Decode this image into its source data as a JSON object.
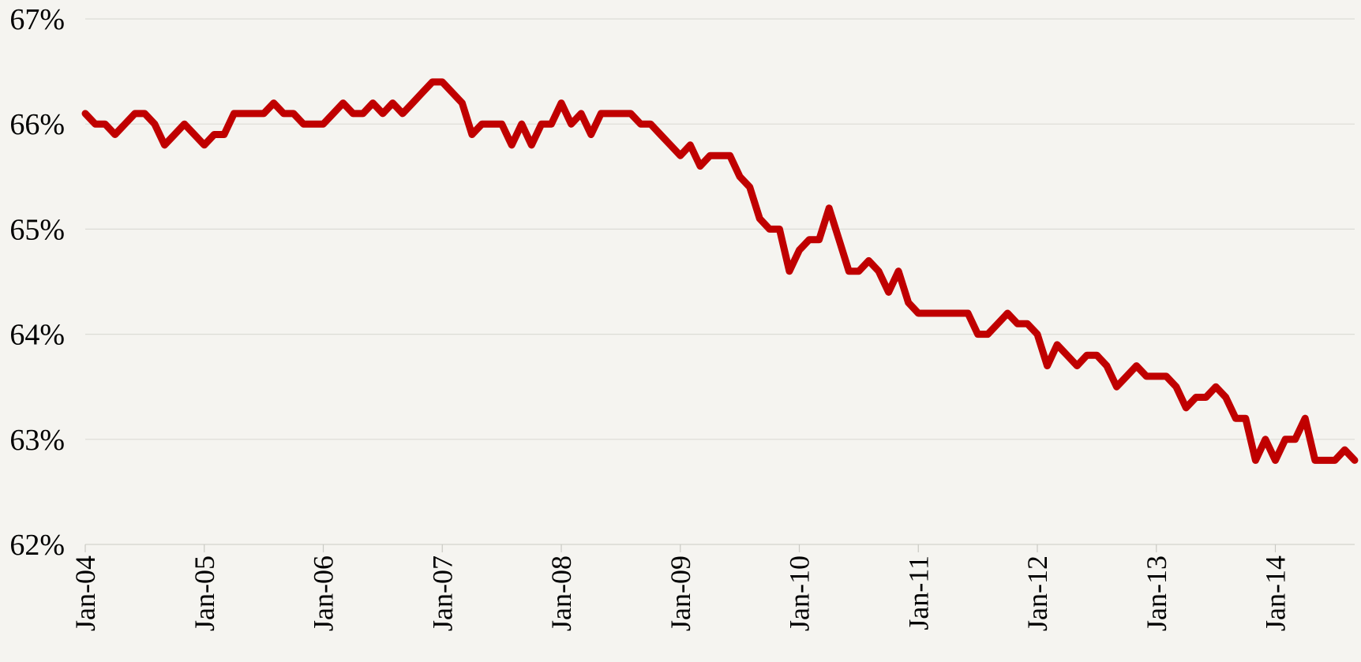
{
  "chart_data": {
    "type": "line",
    "title": "",
    "xlabel": "",
    "ylabel": "",
    "ylim": [
      62,
      67
    ],
    "y_ticks": [
      62,
      63,
      64,
      65,
      66,
      67
    ],
    "y_tick_labels": [
      "62%",
      "63%",
      "64%",
      "65%",
      "66%",
      "67%"
    ],
    "x_range": [
      "2004-01",
      "2014-09"
    ],
    "x_ticks": [
      "2004-01",
      "2005-01",
      "2006-01",
      "2007-01",
      "2008-01",
      "2009-01",
      "2010-01",
      "2011-01",
      "2012-01",
      "2013-01",
      "2014-01"
    ],
    "x_tick_labels": [
      "Jan-04",
      "Jan-05",
      "Jan-06",
      "Jan-07",
      "Jan-08",
      "Jan-09",
      "Jan-10",
      "Jan-11",
      "Jan-12",
      "Jan-13",
      "Jan-14"
    ],
    "grid": true,
    "legend": "none",
    "series": [
      {
        "color": "#c00000",
        "x": [
          "2004-01",
          "2004-02",
          "2004-03",
          "2004-04",
          "2004-05",
          "2004-06",
          "2004-07",
          "2004-08",
          "2004-09",
          "2004-10",
          "2004-11",
          "2004-12",
          "2005-01",
          "2005-02",
          "2005-03",
          "2005-04",
          "2005-05",
          "2005-06",
          "2005-07",
          "2005-08",
          "2005-09",
          "2005-10",
          "2005-11",
          "2005-12",
          "2006-01",
          "2006-02",
          "2006-03",
          "2006-04",
          "2006-05",
          "2006-06",
          "2006-07",
          "2006-08",
          "2006-09",
          "2006-10",
          "2006-11",
          "2006-12",
          "2007-01",
          "2007-02",
          "2007-03",
          "2007-04",
          "2007-05",
          "2007-06",
          "2007-07",
          "2007-08",
          "2007-09",
          "2007-10",
          "2007-11",
          "2007-12",
          "2008-01",
          "2008-02",
          "2008-03",
          "2008-04",
          "2008-05",
          "2008-06",
          "2008-07",
          "2008-08",
          "2008-09",
          "2008-10",
          "2008-11",
          "2008-12",
          "2009-01",
          "2009-02",
          "2009-03",
          "2009-04",
          "2009-05",
          "2009-06",
          "2009-07",
          "2009-08",
          "2009-09",
          "2009-10",
          "2009-11",
          "2009-12",
          "2010-01",
          "2010-02",
          "2010-03",
          "2010-04",
          "2010-05",
          "2010-06",
          "2010-07",
          "2010-08",
          "2010-09",
          "2010-10",
          "2010-11",
          "2010-12",
          "2011-01",
          "2011-02",
          "2011-03",
          "2011-04",
          "2011-05",
          "2011-06",
          "2011-07",
          "2011-08",
          "2011-09",
          "2011-10",
          "2011-11",
          "2011-12",
          "2012-01",
          "2012-02",
          "2012-03",
          "2012-04",
          "2012-05",
          "2012-06",
          "2012-07",
          "2012-08",
          "2012-09",
          "2012-10",
          "2012-11",
          "2012-12",
          "2013-01",
          "2013-02",
          "2013-03",
          "2013-04",
          "2013-05",
          "2013-06",
          "2013-07",
          "2013-08",
          "2013-09",
          "2013-10",
          "2013-11",
          "2013-12",
          "2014-01",
          "2014-02",
          "2014-03",
          "2014-04",
          "2014-05",
          "2014-06",
          "2014-07",
          "2014-08",
          "2014-09"
        ],
        "values": [
          66.1,
          66.0,
          66.0,
          65.9,
          66.0,
          66.1,
          66.1,
          66.0,
          65.8,
          65.9,
          66.0,
          65.9,
          65.8,
          65.9,
          65.9,
          66.1,
          66.1,
          66.1,
          66.1,
          66.2,
          66.1,
          66.1,
          66.0,
          66.0,
          66.0,
          66.1,
          66.2,
          66.1,
          66.1,
          66.2,
          66.1,
          66.2,
          66.1,
          66.2,
          66.3,
          66.4,
          66.4,
          66.3,
          66.2,
          65.9,
          66.0,
          66.0,
          66.0,
          65.8,
          66.0,
          65.8,
          66.0,
          66.0,
          66.2,
          66.0,
          66.1,
          65.9,
          66.1,
          66.1,
          66.1,
          66.1,
          66.0,
          66.0,
          65.9,
          65.8,
          65.7,
          65.8,
          65.6,
          65.7,
          65.7,
          65.7,
          65.5,
          65.4,
          65.1,
          65.0,
          65.0,
          64.6,
          64.8,
          64.9,
          64.9,
          65.2,
          64.9,
          64.6,
          64.6,
          64.7,
          64.6,
          64.4,
          64.6,
          64.3,
          64.2,
          64.2,
          64.2,
          64.2,
          64.2,
          64.2,
          64.0,
          64.0,
          64.1,
          64.2,
          64.1,
          64.1,
          64.0,
          63.7,
          63.9,
          63.8,
          63.7,
          63.8,
          63.8,
          63.7,
          63.5,
          63.6,
          63.7,
          63.6,
          63.6,
          63.6,
          63.5,
          63.3,
          63.4,
          63.4,
          63.5,
          63.4,
          63.2,
          63.2,
          62.8,
          63.0,
          62.8,
          63.0,
          63.0,
          63.2,
          62.8,
          62.8,
          62.8,
          62.9,
          62.8
        ]
      }
    ]
  }
}
